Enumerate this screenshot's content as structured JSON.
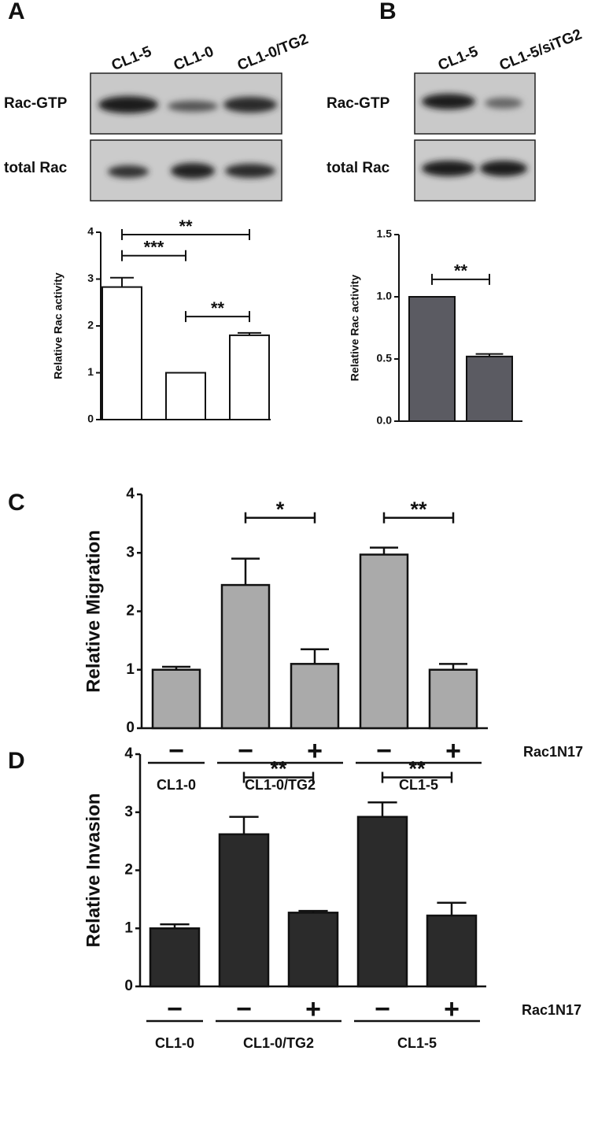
{
  "panels": [
    {
      "label": "A",
      "lanes": [
        "CL1-5",
        "CL1-0",
        "CL1-0/TG2"
      ],
      "rows": [
        "Rac-GTP",
        "total Rac"
      ]
    },
    {
      "label": "B",
      "lanes": [
        "CL1-5",
        "CL1-5/siTG2"
      ],
      "rows": [
        "Rac-GTP",
        "total Rac"
      ]
    },
    {
      "label": "C"
    },
    {
      "label": "D"
    }
  ],
  "chart_data": [
    {
      "type": "bar",
      "y_label": "Relative Rac activity",
      "categories": [
        null,
        null,
        null
      ],
      "values": [
        2.83,
        1.0,
        1.8
      ],
      "errors": [
        0.2,
        0,
        0.05
      ],
      "color": "#ffffff",
      "ylim": [
        0,
        4
      ],
      "yticks": [
        0,
        1,
        2,
        3,
        4
      ],
      "annotations": [
        {
          "text": "***",
          "between": [
            0,
            1
          ],
          "y": 3.5
        },
        {
          "text": "**",
          "between": [
            0,
            2
          ],
          "y": 3.95
        },
        {
          "text": "**",
          "between": [
            1,
            2
          ],
          "y": 2.2
        }
      ]
    },
    {
      "type": "bar",
      "y_label": "Relative Rac activity",
      "categories": [
        null,
        null
      ],
      "values": [
        1.0,
        0.52
      ],
      "errors": [
        0,
        0.02
      ],
      "color": "#5b5b62",
      "ylim": [
        0,
        1.5
      ],
      "yticks": [
        {
          "value": 0,
          "label": "0.0"
        },
        {
          "value": 0.5,
          "label": "0.5"
        },
        {
          "value": 1,
          "label": "1.0"
        },
        {
          "value": 1.5,
          "label": "1.5"
        }
      ],
      "annotations": [
        {
          "text": "**",
          "between": [
            0,
            1
          ],
          "y": 1.14
        }
      ]
    },
    {
      "type": "bar",
      "y_label": "Relative Migration",
      "categories": [
        "−",
        "−",
        "+",
        "−",
        "+"
      ],
      "row_label": "Rac1N17",
      "groups": [
        {
          "name": "CL1-0",
          "size": 1
        },
        {
          "name": "CL1-0/TG2",
          "size": 2
        },
        {
          "name": "CL1-5",
          "size": 2
        }
      ],
      "values": [
        1.0,
        2.45,
        1.1,
        2.97,
        1.0
      ],
      "errors": [
        0.05,
        0.45,
        0.25,
        0.12,
        0.1
      ],
      "color": "#aaaaaa",
      "ylim": [
        0,
        4
      ],
      "yticks": [
        0,
        1,
        2,
        3,
        4
      ],
      "annotations": [
        {
          "text": "*",
          "between": [
            1,
            2
          ],
          "y": 3.6
        },
        {
          "text": "**",
          "between": [
            3,
            4
          ],
          "y": 3.6
        }
      ]
    },
    {
      "type": "bar",
      "y_label": "Relative Invasion",
      "categories": [
        "−",
        "−",
        "+",
        "−",
        "+"
      ],
      "row_label": "Rac1N17",
      "groups": [
        {
          "name": "CL1-0",
          "size": 1
        },
        {
          "name": "CL1-0/TG2",
          "size": 2
        },
        {
          "name": "CL1-5",
          "size": 2
        }
      ],
      "values": [
        1.0,
        2.62,
        1.27,
        2.92,
        1.22
      ],
      "errors": [
        0.07,
        0.3,
        0.03,
        0.25,
        0.22
      ],
      "color": "#2b2b2b",
      "ylim": [
        0,
        4
      ],
      "yticks": [
        0,
        1,
        2,
        3,
        4
      ],
      "annotations": [
        {
          "text": "**",
          "between": [
            1,
            2
          ],
          "y": 3.6
        },
        {
          "text": "**",
          "between": [
            3,
            4
          ],
          "y": 3.6
        }
      ]
    }
  ]
}
